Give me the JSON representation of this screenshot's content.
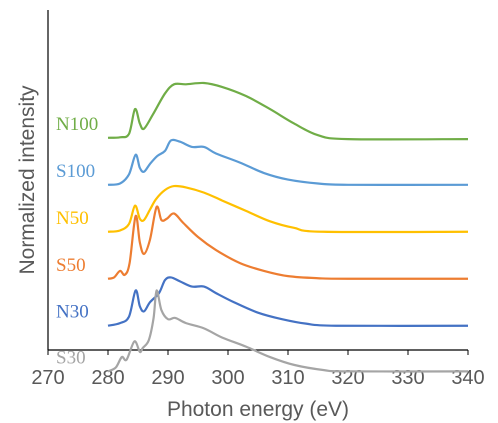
{
  "chart_data": {
    "type": "line",
    "title": "",
    "xlabel": "Photon energy (eV)",
    "ylabel": "Normalized intensity",
    "xlim": [
      270,
      340
    ],
    "xticks": [
      "270",
      "280",
      "290",
      "300",
      "310",
      "320",
      "330",
      "340"
    ],
    "yticks": [],
    "grid": false,
    "legend": "inline labels at left of each curve",
    "series": [
      {
        "name": "N100",
        "color": "#70ad47",
        "offset": 7.9,
        "x": [
          280,
          282,
          283.5,
          284.5,
          285.3,
          286,
          287.5,
          289.5,
          291,
          293,
          296,
          299,
          303,
          307,
          311,
          315,
          320,
          340
        ],
        "y": [
          0,
          0.02,
          0.15,
          1.1,
          0.55,
          0.35,
          0.9,
          1.7,
          2.05,
          2.05,
          2.1,
          1.95,
          1.6,
          1.1,
          0.55,
          0.1,
          -0.05,
          -0.05
        ]
      },
      {
        "name": "S100",
        "color": "#5b9bd5",
        "offset": 6.1,
        "x": [
          280,
          282,
          283.5,
          284.6,
          285.3,
          286,
          287,
          288.2,
          289.5,
          290.5,
          292,
          294,
          296,
          298,
          302,
          306,
          310,
          315,
          320,
          340
        ],
        "y": [
          0,
          0.05,
          0.4,
          1.15,
          0.65,
          0.5,
          0.8,
          1.1,
          1.3,
          1.7,
          1.65,
          1.45,
          1.45,
          1.2,
          0.85,
          0.45,
          0.2,
          0.05,
          0.0,
          0.0
        ]
      },
      {
        "name": "N50",
        "color": "#ffc000",
        "offset": 4.3,
        "x": [
          280,
          282,
          283.5,
          284.5,
          285.3,
          286,
          287,
          288,
          289.5,
          291,
          293,
          296,
          299,
          303,
          307,
          311,
          316,
          340
        ],
        "y": [
          0,
          0.05,
          0.3,
          1.0,
          0.5,
          0.45,
          0.85,
          1.25,
          1.6,
          1.75,
          1.7,
          1.5,
          1.2,
          0.8,
          0.4,
          0.15,
          0.0,
          0.0
        ]
      },
      {
        "name": "S50",
        "color": "#ed7d31",
        "offset": 2.5,
        "x": [
          280,
          281,
          282,
          282.8,
          283.6,
          284.6,
          285.3,
          286,
          287,
          288.1,
          288.9,
          289.8,
          291,
          292.5,
          295,
          298,
          302,
          306,
          310,
          315,
          320,
          340
        ],
        "y": [
          0,
          0.05,
          0.3,
          0.15,
          0.6,
          2.4,
          1.4,
          0.95,
          1.5,
          2.75,
          2.25,
          2.3,
          2.5,
          2.15,
          1.6,
          1.1,
          0.6,
          0.3,
          0.1,
          0.02,
          0.0,
          0.0
        ]
      },
      {
        "name": "N30",
        "color": "#4472c4",
        "offset": 0.7,
        "x": [
          280,
          282,
          283.5,
          284.6,
          285.3,
          286,
          287,
          288.5,
          289.5,
          290.5,
          292,
          294,
          296,
          298,
          301,
          305,
          309,
          313,
          318,
          340
        ],
        "y": [
          0,
          0.1,
          0.35,
          1.35,
          0.75,
          0.55,
          0.9,
          1.25,
          1.75,
          1.85,
          1.7,
          1.5,
          1.5,
          1.25,
          0.9,
          0.5,
          0.25,
          0.08,
          0.0,
          0.0
        ]
      },
      {
        "name": "S30",
        "color": "#a5a5a5",
        "offset": -1.05,
        "x": [
          280,
          281.3,
          282.3,
          283.1,
          284.4,
          285.3,
          285.8,
          286.8,
          287.6,
          288.1,
          288.9,
          290,
          291.2,
          293,
          296,
          299,
          303,
          307,
          311,
          316,
          320,
          340
        ],
        "y": [
          0,
          0.15,
          0.55,
          0.45,
          1.15,
          0.75,
          0.9,
          1.2,
          2.05,
          3.1,
          2.35,
          2.0,
          2.05,
          1.85,
          1.65,
          1.3,
          0.95,
          0.55,
          0.25,
          0.05,
          0.0,
          0.0
        ]
      }
    ]
  }
}
